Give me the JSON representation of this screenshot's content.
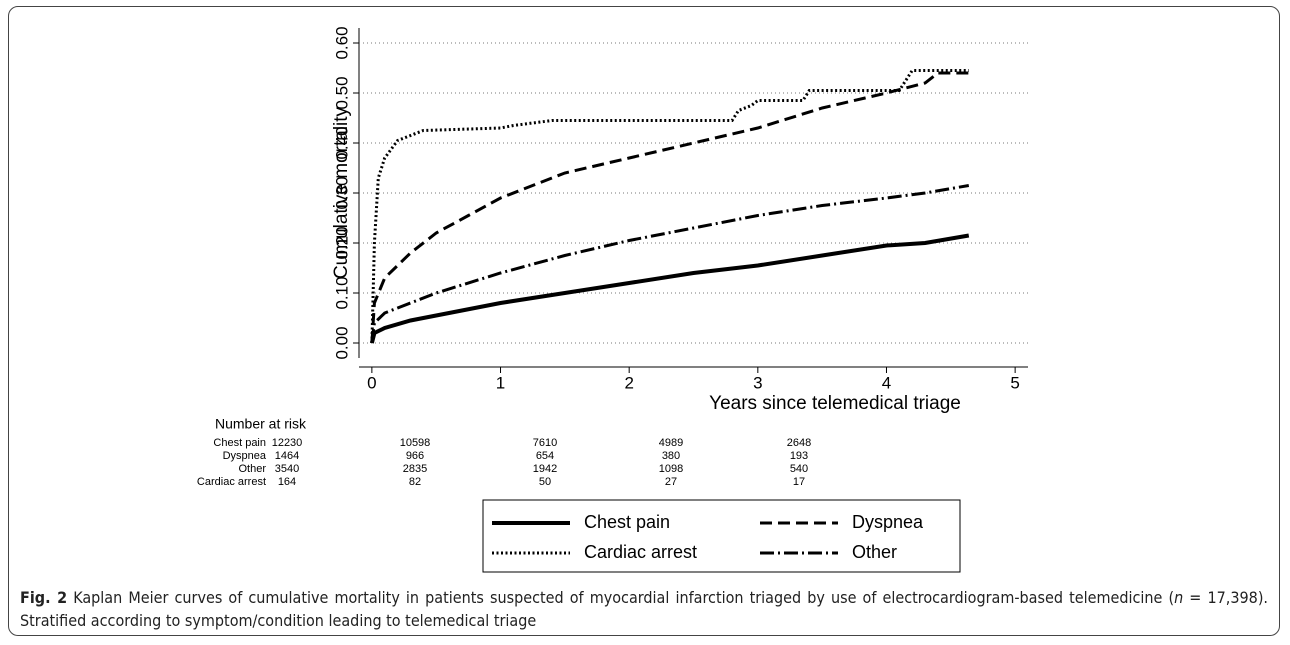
{
  "chart_data": {
    "type": "line",
    "ylabel": "Cumulative mortality",
    "xlabel": "Years since telemedical triage",
    "xlim": [
      -0.1,
      5.1
    ],
    "xticks": [
      0,
      1,
      2,
      3,
      4,
      5
    ],
    "ylim": [
      -0.03,
      0.63
    ],
    "yticks": [
      {
        "value": 0,
        "label": "0.00"
      },
      {
        "value": 0.1,
        "label": "0.10"
      },
      {
        "value": 0.2,
        "label": "0.20"
      },
      {
        "value": 0.3,
        "label": "0.30"
      },
      {
        "value": 0.4,
        "label": "0.40"
      },
      {
        "value": 0.5,
        "label": "0.50"
      },
      {
        "value": 0.6,
        "label": "0.60"
      }
    ],
    "grid": true,
    "series": [
      {
        "name": "Chest pain",
        "color": "#000000",
        "dash": "solid",
        "x": [
          0,
          0.02,
          0.1,
          0.3,
          0.5,
          1,
          1.5,
          2,
          2.5,
          3,
          3.5,
          4,
          4.3,
          4.64
        ],
        "y": [
          0,
          0.02,
          0.03,
          0.045,
          0.055,
          0.08,
          0.1,
          0.12,
          0.14,
          0.155,
          0.175,
          0.195,
          0.2,
          0.215
        ]
      },
      {
        "name": "Dyspnea",
        "color": "#000000",
        "dash": "dashed",
        "x": [
          0,
          0.02,
          0.1,
          0.3,
          0.5,
          0.75,
          1,
          1.5,
          2,
          2.5,
          3,
          3.5,
          4,
          4.3,
          4.4,
          4.64
        ],
        "y": [
          0,
          0.08,
          0.13,
          0.18,
          0.22,
          0.255,
          0.29,
          0.34,
          0.37,
          0.4,
          0.43,
          0.47,
          0.5,
          0.52,
          0.54,
          0.54
        ]
      },
      {
        "name": "Cardiac arrest",
        "color": "#000000",
        "dash": "dotted",
        "x": [
          0,
          0.02,
          0.05,
          0.1,
          0.2,
          0.3,
          0.4,
          1,
          1.1,
          1.4,
          2.8,
          2.85,
          2.95,
          3,
          3.35,
          3.4,
          4.1,
          4.2,
          4.64
        ],
        "y": [
          0,
          0.2,
          0.33,
          0.37,
          0.405,
          0.415,
          0.425,
          0.43,
          0.435,
          0.445,
          0.445,
          0.465,
          0.475,
          0.485,
          0.485,
          0.505,
          0.505,
          0.545,
          0.545
        ]
      },
      {
        "name": "Other",
        "color": "#000000",
        "dash": "dashdot",
        "x": [
          0,
          0.02,
          0.1,
          0.5,
          1,
          1.5,
          2,
          2.5,
          3,
          3.5,
          4,
          4.3,
          4.64
        ],
        "y": [
          0,
          0.04,
          0.06,
          0.1,
          0.14,
          0.175,
          0.205,
          0.23,
          0.255,
          0.275,
          0.29,
          0.3,
          0.315
        ]
      }
    ],
    "risk_table": {
      "title": "Number at risk",
      "rows": [
        {
          "name": "Chest pain",
          "values": [
            12230,
            10598,
            7610,
            4989,
            2648
          ]
        },
        {
          "name": "Dyspnea",
          "values": [
            1464,
            966,
            654,
            380,
            193
          ]
        },
        {
          "name": "Other",
          "values": [
            3540,
            2835,
            1942,
            1098,
            540
          ]
        },
        {
          "name": "Cardiac arrest",
          "values": [
            164,
            82,
            50,
            27,
            17
          ]
        }
      ]
    }
  },
  "caption": {
    "label": "Fig. 2",
    "text_before": "Kaplan Meier curves of cumulative mortality in patients suspected of myocardial infarction triaged by use of electrocardiogram-based telemedicine (",
    "italic": "n",
    "text_after": " = 17,398). Stratified according to symptom/condition leading to telemedical triage"
  }
}
